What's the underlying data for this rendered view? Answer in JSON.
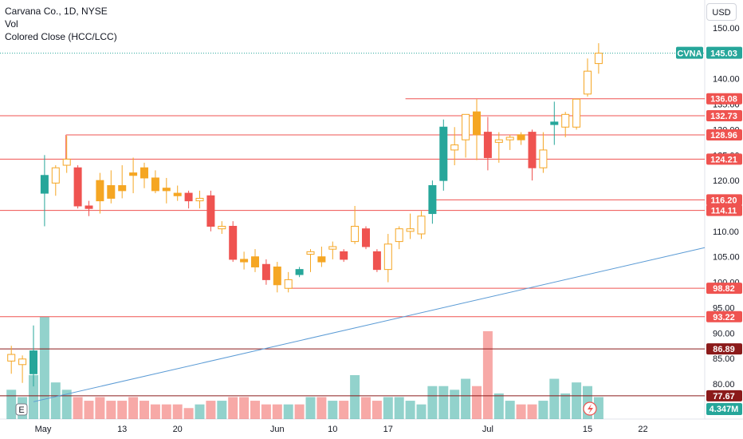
{
  "legend": {
    "title": "Carvana Co., 1D, NYSE",
    "vol_label": "Vol",
    "indicator_label": "Colored Close (HCC/LCC)"
  },
  "currency": "USD",
  "colors": {
    "up": "#26a69a",
    "down": "#ef5350",
    "neutral": "#f5a623",
    "level_line": "#ef5350",
    "dark_level": "#8b1a1a",
    "trend_line": "#5b9bd5",
    "price_line": "#26a69a"
  },
  "chart_data": {
    "type": "candlestick",
    "symbol": "CVNA",
    "last_price": 145.03,
    "last_price_label": "145.03",
    "volume_label": "4.347M",
    "y_axis": {
      "range": [
        75,
        152
      ],
      "ticks": [
        80,
        85,
        90,
        95,
        100,
        105,
        110,
        115,
        120,
        125,
        130,
        135,
        140,
        145,
        150
      ],
      "tick_labels": [
        "80.00",
        "85.00",
        "90.00",
        "95.00",
        "100.00",
        "105.00",
        "110.00",
        "115.00",
        "120.00",
        "125.00",
        "130.00",
        "135.00",
        "140.00",
        "145.00",
        "150.00"
      ]
    },
    "x_axis": {
      "ticks": [
        {
          "label": "May",
          "index": 2
        },
        {
          "label": "13",
          "index": 10
        },
        {
          "label": "20",
          "index": 15
        },
        {
          "label": "Jun",
          "index": 24
        },
        {
          "label": "10",
          "index": 29
        },
        {
          "label": "17",
          "index": 34
        },
        {
          "label": "Jul",
          "index": 43
        },
        {
          "label": "15",
          "index": 52
        },
        {
          "label": "22",
          "index": 57
        }
      ]
    },
    "candles": [
      {
        "o": 84.5,
        "h": 87.5,
        "l": 82.0,
        "c": 85.8,
        "v": 0.4,
        "color": "neutral"
      },
      {
        "o": 83.8,
        "h": 85.6,
        "l": 80.2,
        "c": 84.9,
        "v": 0.3,
        "color": "neutral"
      },
      {
        "o": 82.0,
        "h": 91.5,
        "l": 79.5,
        "c": 86.5,
        "v": 0.6,
        "color": "up"
      },
      {
        "o": 117.5,
        "h": 125.0,
        "l": 111.0,
        "c": 121.0,
        "v": 1.4,
        "color": "up"
      },
      {
        "o": 119.5,
        "h": 123.0,
        "l": 117.0,
        "c": 122.5,
        "v": 0.5,
        "color": "neutral"
      },
      {
        "o": 123.0,
        "h": 128.8,
        "l": 121.5,
        "c": 124.2,
        "v": 0.4,
        "color": "neutral"
      },
      {
        "o": 122.5,
        "h": 123.0,
        "l": 114.5,
        "c": 115.0,
        "v": 0.3,
        "color": "down"
      },
      {
        "o": 115.0,
        "h": 116.0,
        "l": 113.0,
        "c": 114.5,
        "v": 0.25,
        "color": "down"
      },
      {
        "o": 120.0,
        "h": 121.5,
        "l": 113.5,
        "c": 116.0,
        "v": 0.3,
        "color": "neutral"
      },
      {
        "o": 119.0,
        "h": 122.0,
        "l": 115.5,
        "c": 116.5,
        "v": 0.25,
        "color": "neutral"
      },
      {
        "o": 119.0,
        "h": 123.0,
        "l": 116.5,
        "c": 118.0,
        "v": 0.25,
        "color": "neutral"
      },
      {
        "o": 121.5,
        "h": 124.5,
        "l": 117.5,
        "c": 121.0,
        "v": 0.3,
        "color": "neutral"
      },
      {
        "o": 122.5,
        "h": 123.5,
        "l": 118.5,
        "c": 120.5,
        "v": 0.25,
        "color": "neutral"
      },
      {
        "o": 120.5,
        "h": 122.0,
        "l": 117.5,
        "c": 118.0,
        "v": 0.2,
        "color": "neutral"
      },
      {
        "o": 118.5,
        "h": 120.5,
        "l": 115.5,
        "c": 118.0,
        "v": 0.2,
        "color": "neutral"
      },
      {
        "o": 117.5,
        "h": 119.0,
        "l": 116.0,
        "c": 117.0,
        "v": 0.2,
        "color": "neutral"
      },
      {
        "o": 117.5,
        "h": 118.0,
        "l": 114.5,
        "c": 116.0,
        "v": 0.15,
        "color": "down"
      },
      {
        "o": 116.0,
        "h": 118.0,
        "l": 114.5,
        "c": 116.5,
        "v": 0.2,
        "color": "neutral"
      },
      {
        "o": 117.0,
        "h": 118.0,
        "l": 110.0,
        "c": 111.0,
        "v": 0.25,
        "color": "down"
      },
      {
        "o": 110.5,
        "h": 112.0,
        "l": 109.5,
        "c": 111.0,
        "v": 0.25,
        "color": "neutral"
      },
      {
        "o": 111.0,
        "h": 112.0,
        "l": 104.0,
        "c": 104.5,
        "v": 0.3,
        "color": "down"
      },
      {
        "o": 104.5,
        "h": 106.0,
        "l": 102.5,
        "c": 104.0,
        "v": 0.3,
        "color": "neutral"
      },
      {
        "o": 105.0,
        "h": 106.5,
        "l": 102.0,
        "c": 103.0,
        "v": 0.25,
        "color": "neutral"
      },
      {
        "o": 103.5,
        "h": 104.5,
        "l": 99.5,
        "c": 100.5,
        "v": 0.2,
        "color": "down"
      },
      {
        "o": 103.0,
        "h": 104.0,
        "l": 98.0,
        "c": 99.5,
        "v": 0.2,
        "color": "neutral"
      },
      {
        "o": 98.8,
        "h": 102.0,
        "l": 98.0,
        "c": 100.5,
        "v": 0.2,
        "color": "neutral"
      },
      {
        "o": 102.5,
        "h": 103.0,
        "l": 101.0,
        "c": 101.5,
        "v": 0.2,
        "color": "up"
      },
      {
        "o": 105.5,
        "h": 106.5,
        "l": 102.0,
        "c": 106.0,
        "v": 0.3,
        "color": "neutral"
      },
      {
        "o": 105.0,
        "h": 107.0,
        "l": 103.0,
        "c": 104.0,
        "v": 0.3,
        "color": "neutral"
      },
      {
        "o": 106.5,
        "h": 108.0,
        "l": 104.5,
        "c": 107.0,
        "v": 0.25,
        "color": "neutral"
      },
      {
        "o": 106.0,
        "h": 106.5,
        "l": 104.0,
        "c": 104.5,
        "v": 0.25,
        "color": "down"
      },
      {
        "o": 108.0,
        "h": 115.0,
        "l": 107.5,
        "c": 111.0,
        "v": 0.6,
        "color": "neutral"
      },
      {
        "o": 110.5,
        "h": 111.0,
        "l": 106.5,
        "c": 107.0,
        "v": 0.3,
        "color": "down"
      },
      {
        "o": 106.0,
        "h": 106.5,
        "l": 102.0,
        "c": 102.5,
        "v": 0.25,
        "color": "down"
      },
      {
        "o": 102.5,
        "h": 109.5,
        "l": 100.0,
        "c": 107.5,
        "v": 0.3,
        "color": "neutral"
      },
      {
        "o": 108.0,
        "h": 111.0,
        "l": 106.5,
        "c": 110.5,
        "v": 0.3,
        "color": "neutral"
      },
      {
        "o": 110.0,
        "h": 113.5,
        "l": 108.5,
        "c": 110.5,
        "v": 0.25,
        "color": "neutral"
      },
      {
        "o": 109.5,
        "h": 114.0,
        "l": 108.5,
        "c": 113.0,
        "v": 0.2,
        "color": "neutral"
      },
      {
        "o": 113.5,
        "h": 120.0,
        "l": 111.5,
        "c": 119.0,
        "v": 0.45,
        "color": "up"
      },
      {
        "o": 120.0,
        "h": 132.0,
        "l": 118.0,
        "c": 130.5,
        "v": 0.45,
        "color": "up"
      },
      {
        "o": 126.0,
        "h": 130.5,
        "l": 123.0,
        "c": 127.0,
        "v": 0.4,
        "color": "neutral"
      },
      {
        "o": 128.0,
        "h": 133.0,
        "l": 124.5,
        "c": 133.0,
        "v": 0.55,
        "color": "neutral"
      },
      {
        "o": 133.5,
        "h": 136.0,
        "l": 124.0,
        "c": 129.0,
        "v": 0.45,
        "color": "neutral"
      },
      {
        "o": 129.5,
        "h": 132.5,
        "l": 122.0,
        "c": 124.5,
        "v": 1.2,
        "color": "down"
      },
      {
        "o": 127.5,
        "h": 129.5,
        "l": 123.5,
        "c": 128.0,
        "v": 0.35,
        "color": "neutral"
      },
      {
        "o": 128.0,
        "h": 129.0,
        "l": 126.0,
        "c": 128.5,
        "v": 0.25,
        "color": "neutral"
      },
      {
        "o": 129.0,
        "h": 129.5,
        "l": 127.0,
        "c": 128.0,
        "v": 0.2,
        "color": "neutral"
      },
      {
        "o": 129.5,
        "h": 130.0,
        "l": 120.0,
        "c": 122.5,
        "v": 0.2,
        "color": "down"
      },
      {
        "o": 122.5,
        "h": 129.5,
        "l": 121.5,
        "c": 126.0,
        "v": 0.25,
        "color": "neutral"
      },
      {
        "o": 131.0,
        "h": 135.5,
        "l": 127.0,
        "c": 131.5,
        "v": 0.55,
        "color": "up"
      },
      {
        "o": 130.5,
        "h": 133.5,
        "l": 128.5,
        "c": 133.0,
        "v": 0.35,
        "color": "neutral"
      },
      {
        "o": 130.5,
        "h": 136.0,
        "l": 130.0,
        "c": 136.0,
        "v": 0.5,
        "color": "neutral"
      },
      {
        "o": 137.0,
        "h": 144.0,
        "l": 136.5,
        "c": 141.5,
        "v": 0.45,
        "color": "neutral"
      },
      {
        "o": 143.0,
        "h": 147.0,
        "l": 141.0,
        "c": 145.03,
        "v": 0.3,
        "color": "neutral"
      }
    ],
    "levels": [
      {
        "value": 136.08,
        "label": "136.08",
        "style": "red"
      },
      {
        "value": 132.73,
        "label": "132.73",
        "style": "red"
      },
      {
        "value": 128.96,
        "label": "128.96",
        "style": "red"
      },
      {
        "value": 124.21,
        "label": "124.21",
        "style": "red"
      },
      {
        "value": 116.2,
        "label": "116.20",
        "style": "red"
      },
      {
        "value": 114.11,
        "label": "114.11",
        "style": "red"
      },
      {
        "value": 98.82,
        "label": "98.82",
        "style": "red"
      },
      {
        "value": 93.22,
        "label": "93.22",
        "style": "red"
      },
      {
        "value": 86.89,
        "label": "86.89",
        "style": "dark"
      },
      {
        "value": 77.67,
        "label": "77.67",
        "style": "dark"
      }
    ],
    "trend_line": {
      "from": {
        "index": 2,
        "value": 76.5
      },
      "to": {
        "index": 65,
        "value": 106.8
      }
    }
  }
}
